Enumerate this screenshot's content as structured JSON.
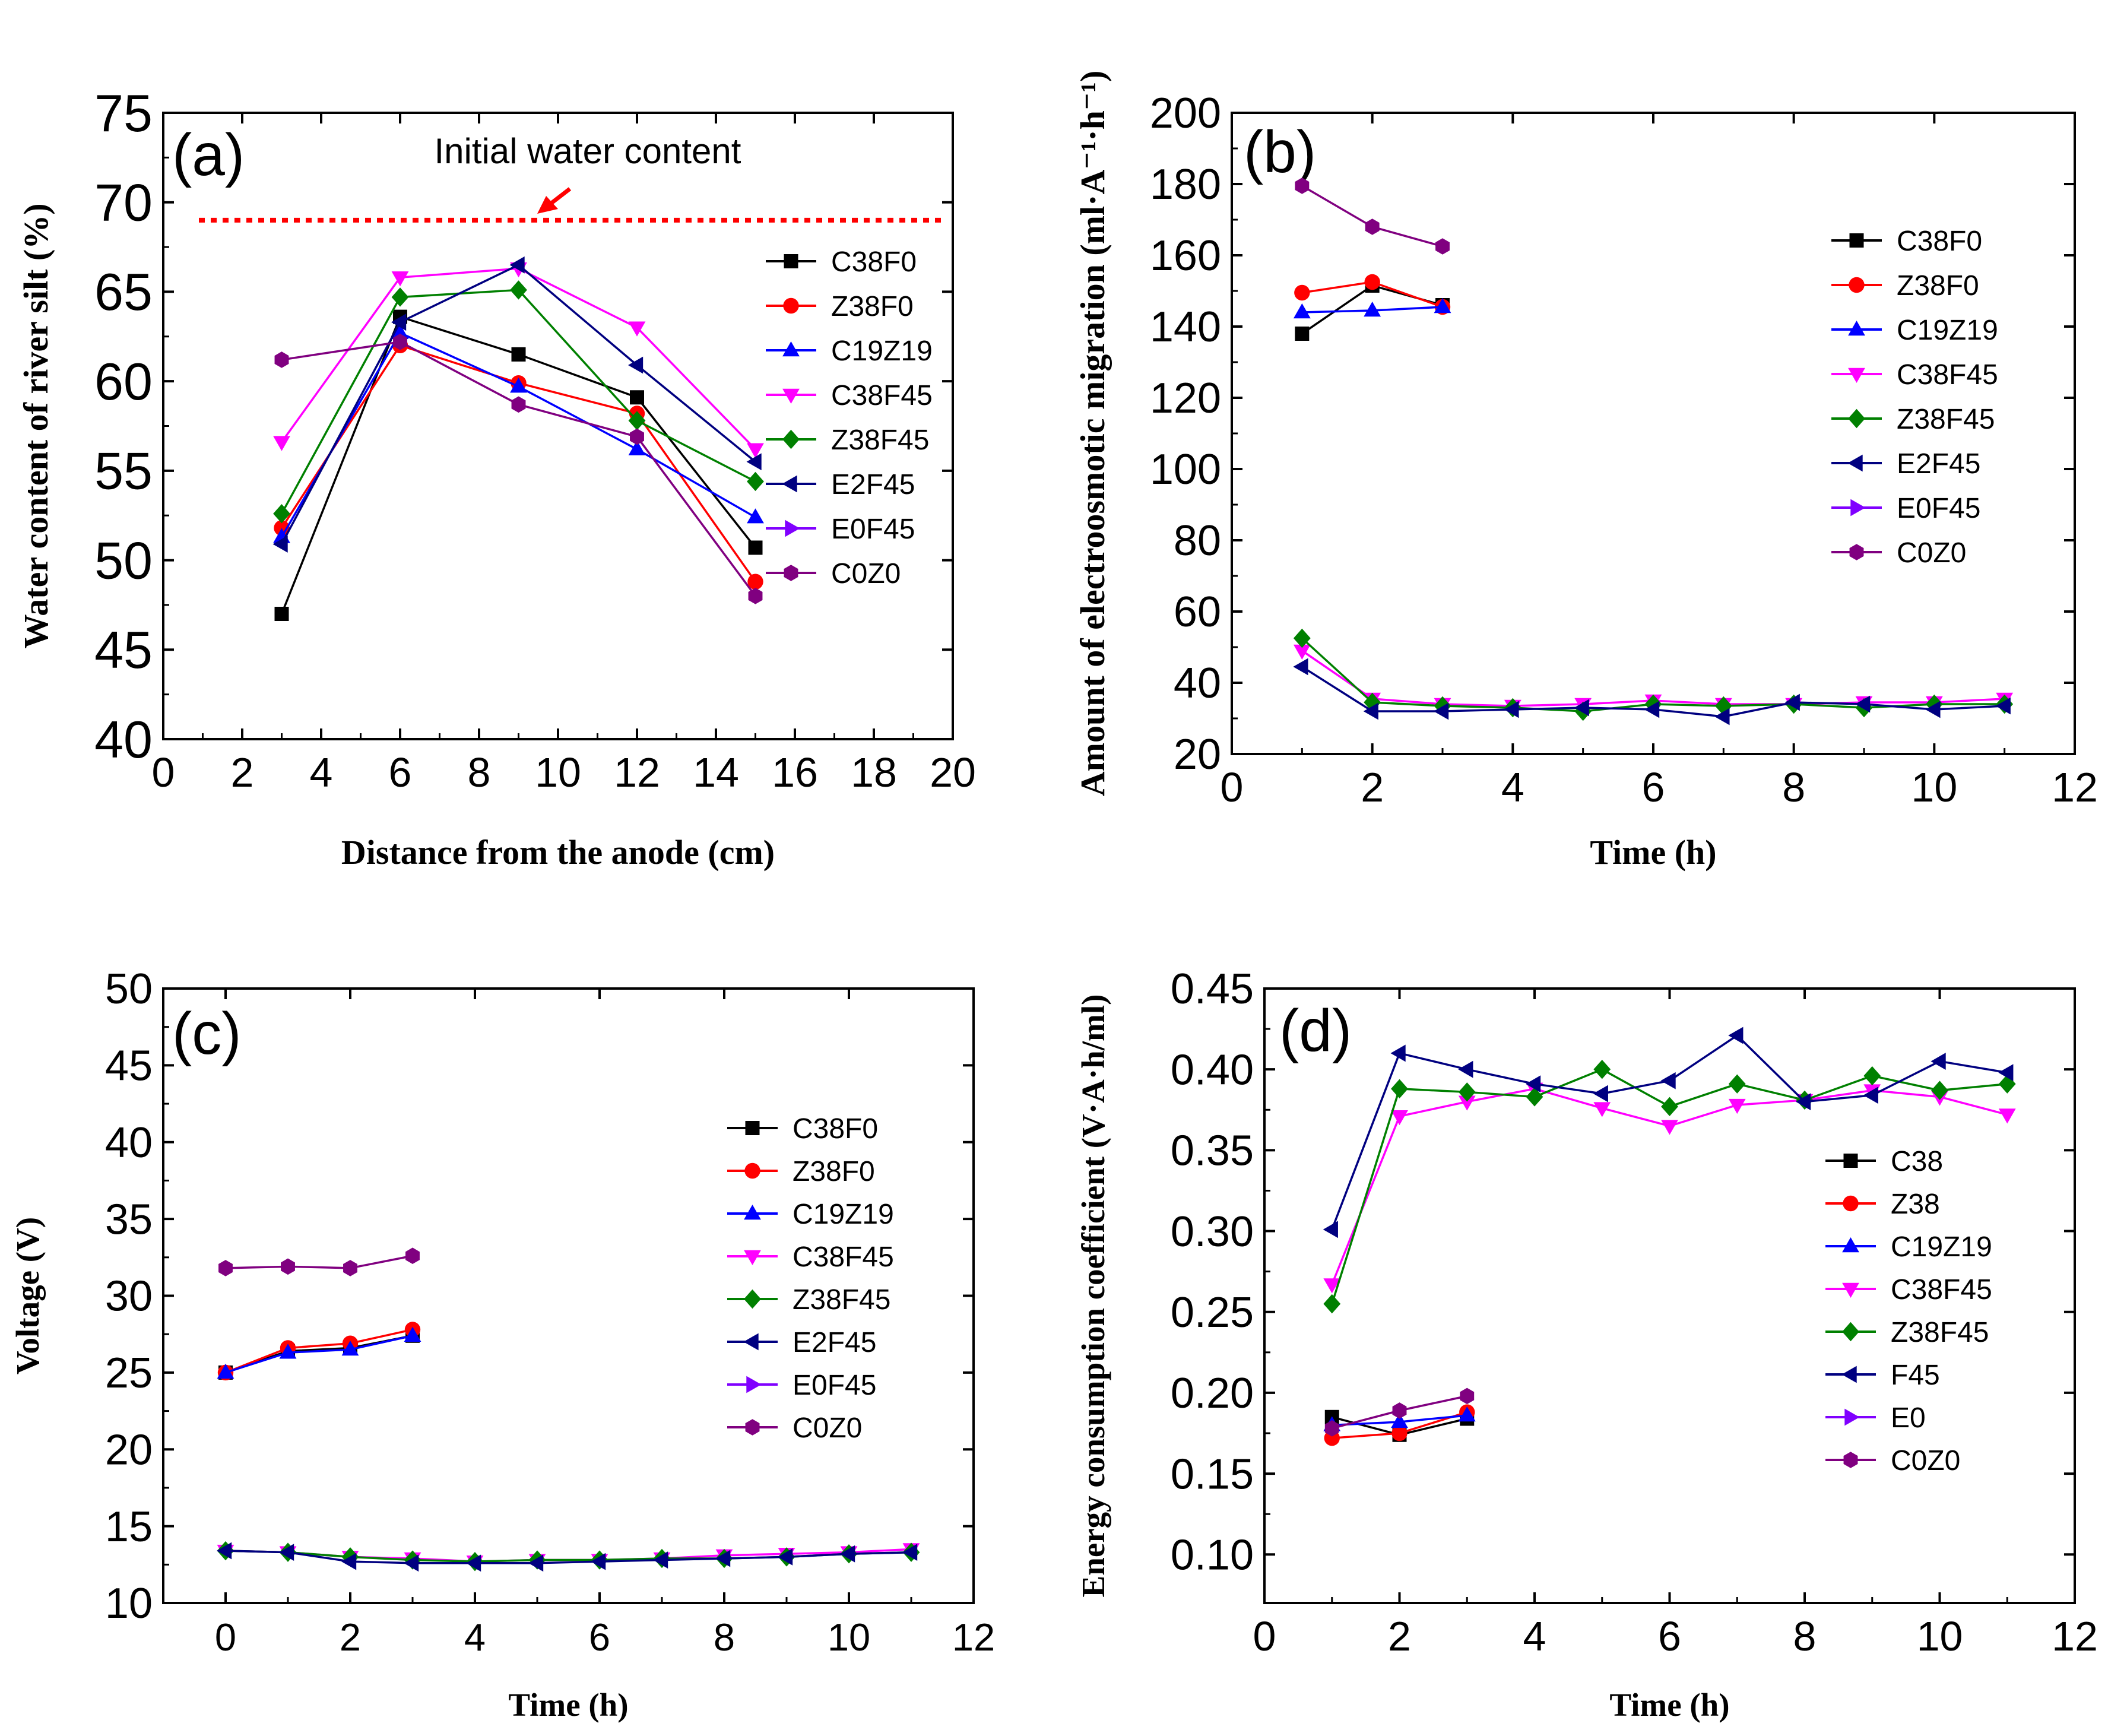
{
  "colors": {
    "C38F0": "#000000",
    "Z38F0": "#ff0000",
    "C19Z19": "#0000ff",
    "C38F45": "#ff00ff",
    "Z38F45": "#008000",
    "E2F45": "#000080",
    "E0F45": "#8000ff",
    "C0Z0": "#800080",
    "reference_line": "#ff0000"
  },
  "chart_data": [
    {
      "panel": "(a)",
      "type": "line",
      "xlabel": "Distance from the anode (cm)",
      "ylabel": "Water content of river silt (%)",
      "xlim": [
        0,
        20
      ],
      "ylim": [
        40,
        75
      ],
      "xticks": [
        0,
        2,
        4,
        6,
        8,
        10,
        12,
        14,
        16,
        18,
        20
      ],
      "yticks": [
        40,
        45,
        50,
        55,
        60,
        65,
        70,
        75
      ],
      "legend_position": "right",
      "reference_line": {
        "y": 69,
        "label": "Initial water content"
      },
      "series": [
        {
          "name": "C38F0",
          "marker": "square",
          "x": [
            3,
            6,
            9,
            12,
            15
          ],
          "y": [
            47.0,
            63.6,
            61.5,
            59.1,
            50.7
          ]
        },
        {
          "name": "Z38F0",
          "marker": "circle",
          "x": [
            3,
            6,
            9,
            12,
            15
          ],
          "y": [
            51.8,
            62.0,
            59.9,
            58.2,
            48.8
          ]
        },
        {
          "name": "C19Z19",
          "marker": "triangle-up",
          "x": [
            3,
            6,
            9,
            12,
            15
          ],
          "y": [
            51.3,
            62.7,
            59.7,
            56.2,
            52.4
          ]
        },
        {
          "name": "C38F45",
          "marker": "triangle-down",
          "x": [
            3,
            6,
            9,
            12,
            15
          ],
          "y": [
            56.6,
            65.8,
            66.3,
            63.0,
            56.2
          ]
        },
        {
          "name": "Z38F45",
          "marker": "diamond",
          "x": [
            3,
            6,
            9,
            12,
            15
          ],
          "y": [
            52.6,
            64.7,
            65.1,
            57.8,
            54.4
          ]
        },
        {
          "name": "E2F45",
          "marker": "triangle-left",
          "x": [
            3,
            6,
            9,
            12,
            15
          ],
          "y": [
            50.9,
            63.3,
            66.5,
            60.9,
            55.5
          ]
        },
        {
          "name": "E0F45",
          "marker": "triangle-right",
          "x": [],
          "y": []
        },
        {
          "name": "C0Z0",
          "marker": "hexagon",
          "x": [
            3,
            6,
            9,
            12,
            15
          ],
          "y": [
            61.2,
            62.2,
            58.7,
            56.9,
            48.0
          ]
        }
      ]
    },
    {
      "panel": "(b)",
      "type": "line",
      "xlabel": "Time (h)",
      "ylabel": "Amount of electroosmotic migration (ml·A⁻¹·h⁻¹)",
      "xlim": [
        0,
        12
      ],
      "ylim": [
        20,
        200
      ],
      "xticks": [
        0,
        2,
        4,
        6,
        8,
        10,
        12
      ],
      "yticks": [
        20,
        40,
        60,
        80,
        100,
        120,
        140,
        160,
        180,
        200
      ],
      "legend_position": "right",
      "series": [
        {
          "name": "C38F0",
          "marker": "square",
          "x": [
            1,
            2,
            3
          ],
          "y": [
            138,
            151.5,
            146
          ]
        },
        {
          "name": "Z38F0",
          "marker": "circle",
          "x": [
            1,
            2,
            3
          ],
          "y": [
            149.5,
            152.5,
            145.5
          ]
        },
        {
          "name": "C19Z19",
          "marker": "triangle-up",
          "x": [
            1,
            2,
            3
          ],
          "y": [
            144,
            144.5,
            145.5
          ]
        },
        {
          "name": "C38F45",
          "marker": "triangle-down",
          "x": [
            1,
            2,
            3,
            4,
            5,
            6,
            7,
            8,
            9,
            10,
            11
          ],
          "y": [
            49,
            35.5,
            34,
            33.5,
            34,
            35,
            34,
            34,
            34.5,
            34.5,
            35.5
          ]
        },
        {
          "name": "Z38F45",
          "marker": "diamond",
          "x": [
            1,
            2,
            3,
            4,
            5,
            6,
            7,
            8,
            9,
            10,
            11
          ],
          "y": [
            52.5,
            34.5,
            33.5,
            33,
            32,
            34,
            33.5,
            34,
            33,
            34,
            34
          ]
        },
        {
          "name": "E2F45",
          "marker": "triangle-left",
          "x": [
            1,
            2,
            3,
            4,
            5,
            6,
            7,
            8,
            9,
            10,
            11
          ],
          "y": [
            44.5,
            32,
            32,
            32.5,
            33,
            32.5,
            30.5,
            34.5,
            34,
            32.5,
            33.5
          ]
        },
        {
          "name": "E0F45",
          "marker": "triangle-right",
          "x": [],
          "y": []
        },
        {
          "name": "C0Z0",
          "marker": "hexagon",
          "x": [
            1,
            2,
            3
          ],
          "y": [
            179.5,
            168,
            162.5
          ]
        }
      ]
    },
    {
      "panel": "(c)",
      "type": "line",
      "xlabel": "Time (h)",
      "ylabel": "Voltage (V)",
      "xlim": [
        -1,
        12
      ],
      "ylim": [
        10,
        50
      ],
      "xticks": [
        0,
        2,
        4,
        6,
        8,
        10,
        12
      ],
      "yticks": [
        10,
        15,
        20,
        25,
        30,
        35,
        40,
        45,
        50
      ],
      "legend_position": "right",
      "series": [
        {
          "name": "C38F0",
          "marker": "square",
          "x": [
            0,
            1,
            2,
            3
          ],
          "y": [
            25.0,
            26.4,
            26.6,
            27.4
          ]
        },
        {
          "name": "Z38F0",
          "marker": "circle",
          "x": [
            0,
            1,
            2,
            3
          ],
          "y": [
            25.0,
            26.6,
            26.9,
            27.8
          ]
        },
        {
          "name": "C19Z19",
          "marker": "triangle-up",
          "x": [
            0,
            1,
            2,
            3
          ],
          "y": [
            25.0,
            26.3,
            26.5,
            27.4
          ]
        },
        {
          "name": "C38F45",
          "marker": "triangle-down",
          "x": [
            0,
            1,
            2,
            3,
            4,
            5,
            6,
            7,
            8,
            9,
            10,
            11
          ],
          "y": [
            13.4,
            13.3,
            13.0,
            12.9,
            12.7,
            12.8,
            12.8,
            12.9,
            13.1,
            13.2,
            13.3,
            13.5
          ]
        },
        {
          "name": "Z38F45",
          "marker": "diamond",
          "x": [
            0,
            1,
            2,
            3,
            4,
            5,
            6,
            7,
            8,
            9,
            10,
            11
          ],
          "y": [
            13.4,
            13.3,
            13.0,
            12.8,
            12.7,
            12.8,
            12.8,
            12.9,
            12.9,
            13.0,
            13.2,
            13.3
          ]
        },
        {
          "name": "E2F45",
          "marker": "triangle-left",
          "x": [
            0,
            1,
            2,
            3,
            4,
            5,
            6,
            7,
            8,
            9,
            10,
            11
          ],
          "y": [
            13.4,
            13.3,
            12.7,
            12.6,
            12.6,
            12.6,
            12.7,
            12.8,
            12.9,
            13.0,
            13.2,
            13.3
          ]
        },
        {
          "name": "E0F45",
          "marker": "triangle-right",
          "x": [],
          "y": []
        },
        {
          "name": "C0Z0",
          "marker": "hexagon",
          "x": [
            0,
            1,
            2,
            3
          ],
          "y": [
            31.8,
            31.9,
            31.8,
            32.6
          ]
        }
      ]
    },
    {
      "panel": "(d)",
      "type": "line",
      "xlabel": "Time (h)",
      "ylabel": "Energy consumption coefficient (V·A·h/ml)",
      "xlim": [
        0,
        12
      ],
      "ylim": [
        0.07,
        0.45
      ],
      "xticks": [
        0,
        2,
        4,
        6,
        8,
        10,
        12
      ],
      "yticks": [
        0.1,
        0.15,
        0.2,
        0.25,
        0.3,
        0.35,
        0.4,
        0.45
      ],
      "ytick_labels": [
        "0.10",
        "0.15",
        "0.20",
        "0.25",
        "0.30",
        "0.35",
        "0.40",
        "0.45"
      ],
      "legend_position": "right",
      "series": [
        {
          "name": "C38",
          "color_key": "C38F0",
          "marker": "square",
          "x": [
            1,
            2,
            3
          ],
          "y": [
            0.185,
            0.174,
            0.184
          ]
        },
        {
          "name": "Z38",
          "color_key": "Z38F0",
          "marker": "circle",
          "x": [
            1,
            2,
            3
          ],
          "y": [
            0.172,
            0.175,
            0.188
          ]
        },
        {
          "name": "C19Z19",
          "color_key": "C19Z19",
          "marker": "triangle-up",
          "x": [
            1,
            2,
            3
          ],
          "y": [
            0.18,
            0.182,
            0.186
          ]
        },
        {
          "name": "C38F45",
          "color_key": "C38F45",
          "marker": "triangle-down",
          "x": [
            1,
            2,
            3,
            4,
            5,
            6,
            7,
            8,
            9,
            10,
            11
          ],
          "y": [
            0.267,
            0.371,
            0.38,
            0.388,
            0.376,
            0.365,
            0.378,
            0.381,
            0.387,
            0.383,
            0.372
          ]
        },
        {
          "name": "Z38F45",
          "color_key": "Z38F45",
          "marker": "diamond",
          "x": [
            1,
            2,
            3,
            4,
            5,
            6,
            7,
            8,
            9,
            10,
            11
          ],
          "y": [
            0.255,
            0.388,
            0.386,
            0.383,
            0.4,
            0.377,
            0.391,
            0.381,
            0.396,
            0.387,
            0.391
          ]
        },
        {
          "name": "F45",
          "color_key": "E2F45",
          "marker": "triangle-left",
          "x": [
            1,
            2,
            3,
            4,
            5,
            6,
            7,
            8,
            9,
            10,
            11
          ],
          "y": [
            0.301,
            0.41,
            0.4,
            0.391,
            0.385,
            0.393,
            0.421,
            0.38,
            0.384,
            0.405,
            0.398
          ]
        },
        {
          "name": "E0",
          "color_key": "E0F45",
          "marker": "triangle-right",
          "x": [],
          "y": []
        },
        {
          "name": "C0Z0",
          "color_key": "C0Z0",
          "marker": "hexagon",
          "x": [
            1,
            2,
            3
          ],
          "y": [
            0.178,
            0.189,
            0.198
          ]
        }
      ]
    }
  ]
}
